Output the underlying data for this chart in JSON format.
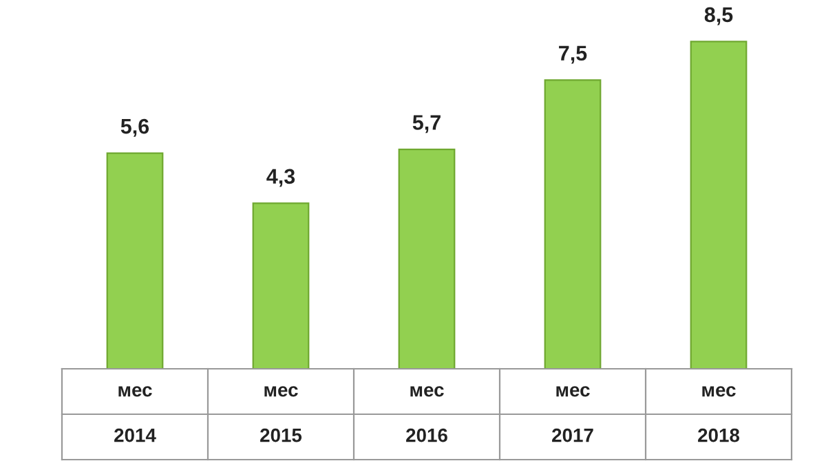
{
  "chart_data": {
    "type": "bar",
    "categories": [
      "мес\n2014",
      "мес\n2015",
      "мес\n2016",
      "мес\n2017",
      "мес\n2018"
    ],
    "values": [
      5.6,
      4.3,
      5.7,
      7.5,
      8.5
    ],
    "value_labels": [
      "5,6",
      "4,3",
      "5,7",
      "7,5",
      "8,5"
    ],
    "color": "#92d050"
  }
}
